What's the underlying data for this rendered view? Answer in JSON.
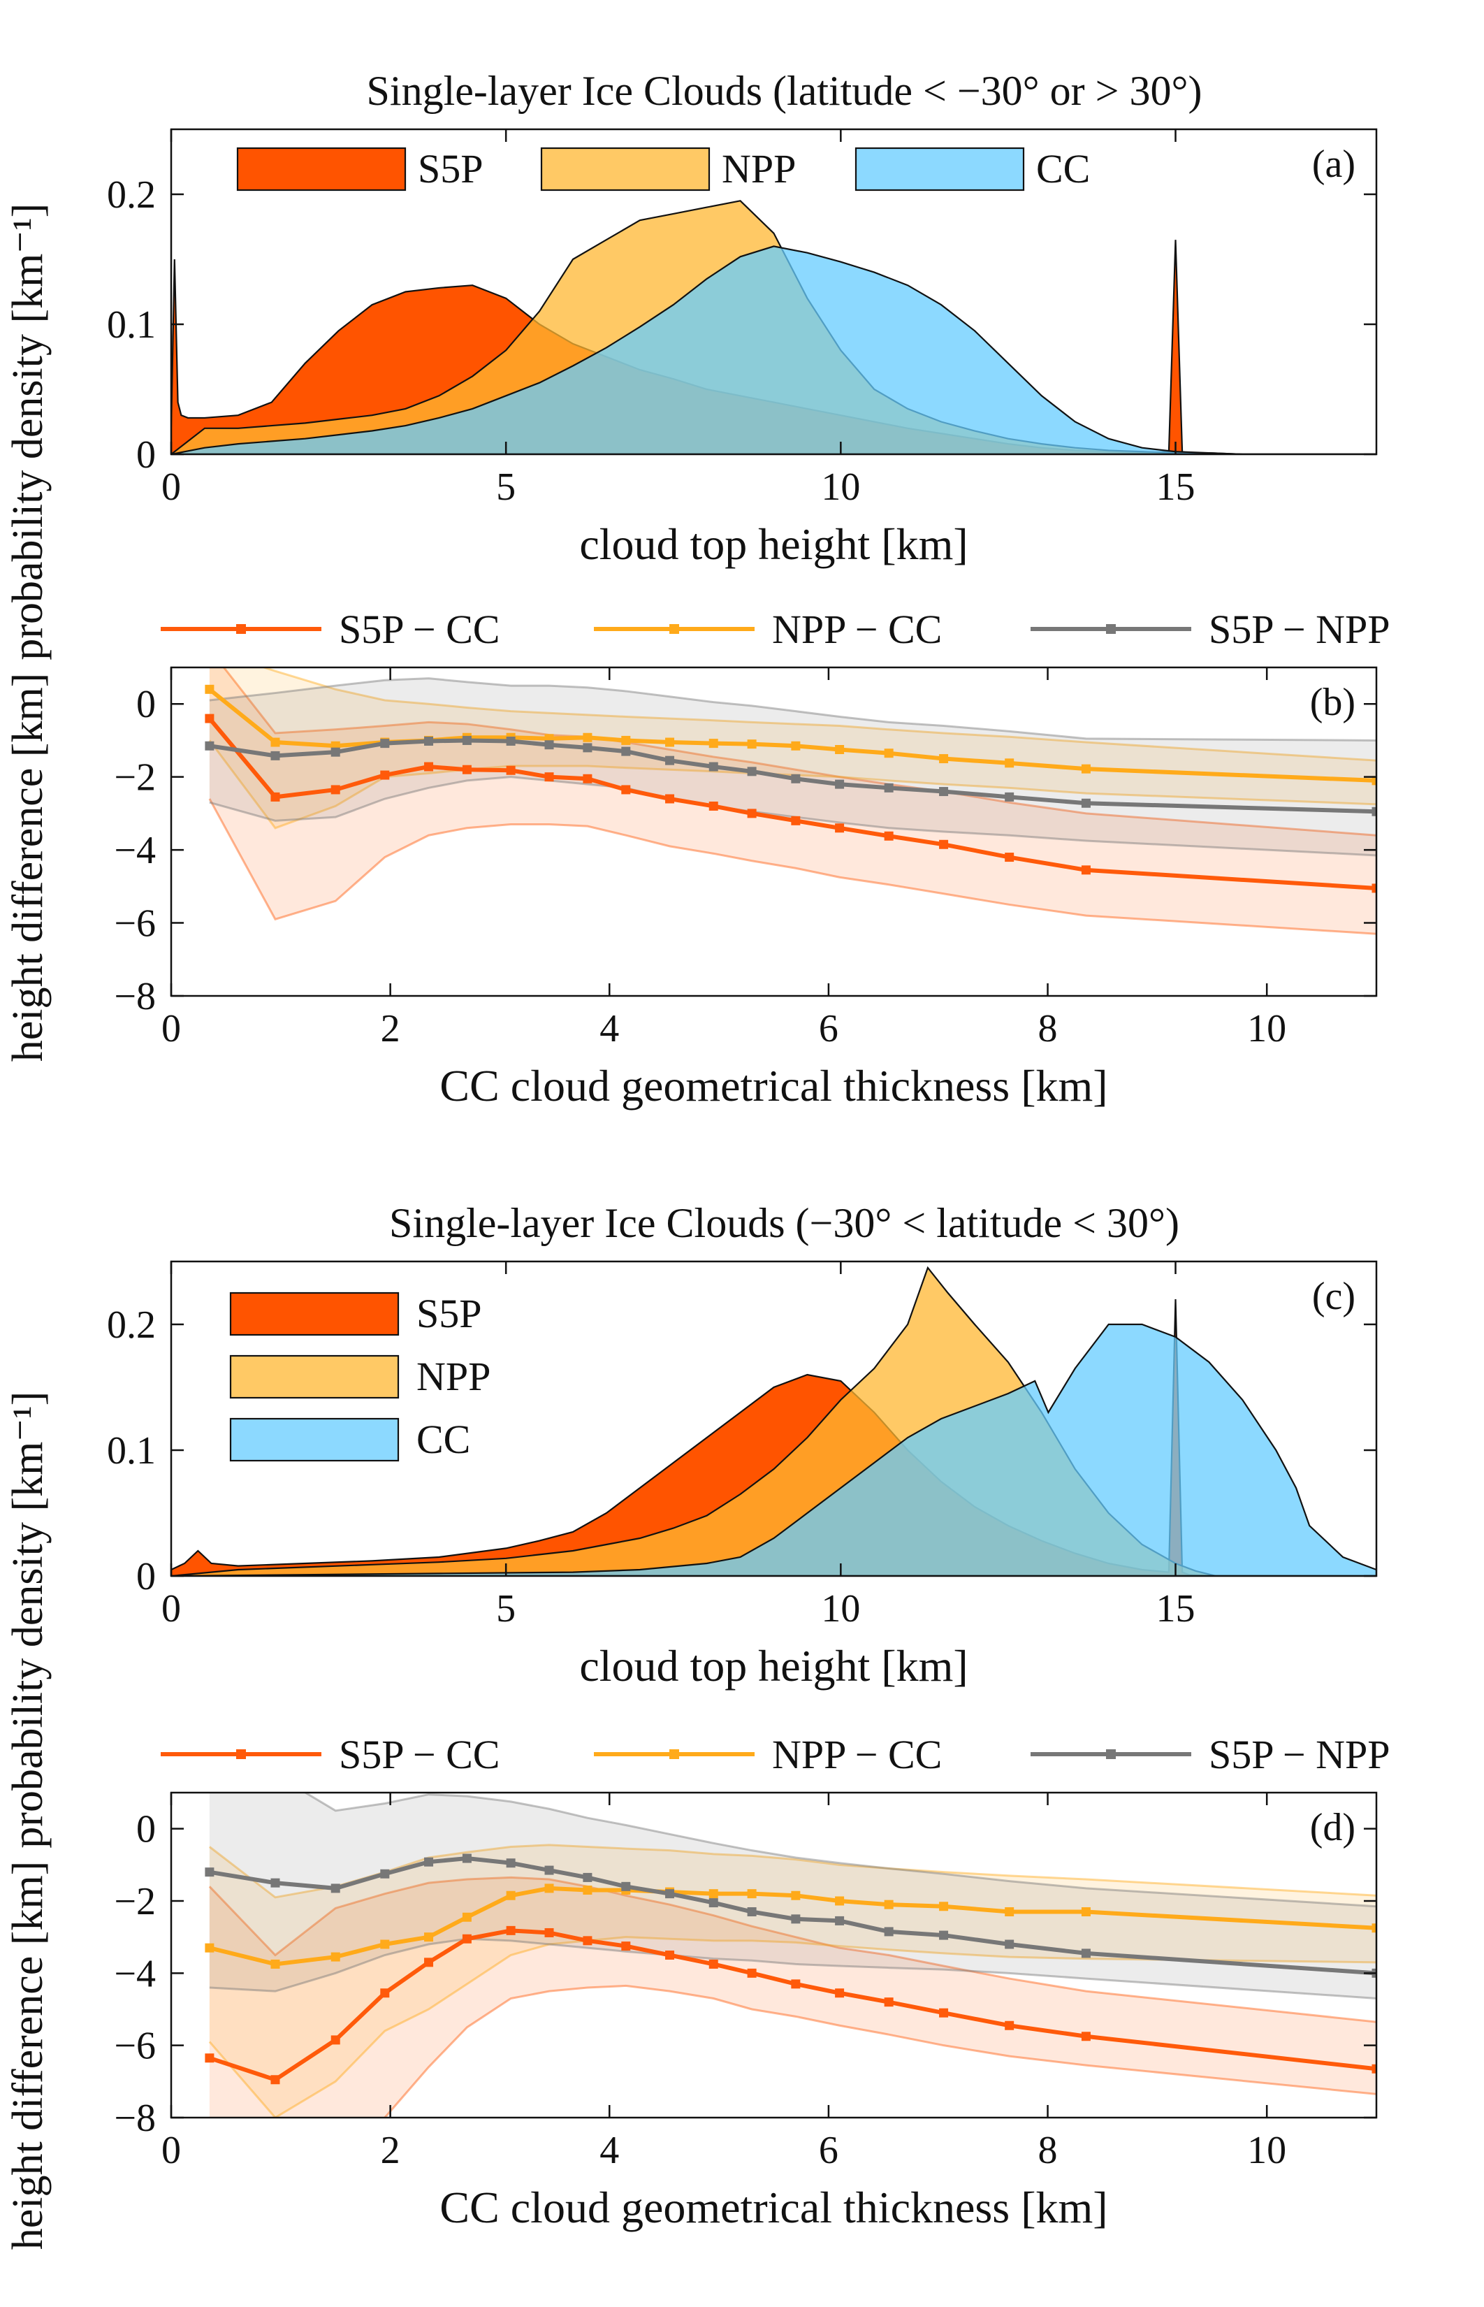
{
  "chart_data": [
    {
      "type": "area",
      "panel_label": "(a)",
      "title": "Single-layer Ice Clouds (latitude < −30° or > 30°)",
      "xlabel": "cloud top height [km]",
      "ylabel": "probability density [km⁻¹]",
      "ylabel_text": "probability density",
      "ylabel_unit": "[km⁻¹]",
      "xlim": [
        0,
        18
      ],
      "ylim": [
        0,
        0.25
      ],
      "xticks": [
        0,
        5,
        10,
        15
      ],
      "yticks": [
        0,
        0.1,
        0.2
      ],
      "xtick_labels": [
        "0",
        "5",
        "10",
        "15"
      ],
      "ytick_labels": [
        "0",
        "0.1",
        "0.2"
      ],
      "legend_position": "top",
      "series": [
        {
          "name": "S5P",
          "color": "#ff5400",
          "x": [
            0,
            0.05,
            0.1,
            0.15,
            0.25,
            0.5,
            1,
            1.5,
            2,
            2.5,
            3,
            3.5,
            4,
            4.5,
            5,
            5.5,
            6,
            6.5,
            7,
            7.5,
            8,
            8.5,
            9,
            9.5,
            10,
            10.5,
            11,
            11.5,
            12,
            12.5,
            13,
            13.5,
            14,
            14.5,
            14.9,
            15.0,
            15.1,
            15.2,
            15.5,
            16,
            17,
            18
          ],
          "values": [
            0.02,
            0.15,
            0.04,
            0.03,
            0.028,
            0.028,
            0.03,
            0.04,
            0.07,
            0.095,
            0.115,
            0.125,
            0.128,
            0.13,
            0.12,
            0.1,
            0.085,
            0.075,
            0.065,
            0.058,
            0.05,
            0.045,
            0.04,
            0.035,
            0.03,
            0.025,
            0.02,
            0.016,
            0.012,
            0.008,
            0.005,
            0.003,
            0.002,
            0.001,
            0.002,
            0.165,
            0.002,
            0.001,
            0.001,
            0.0,
            0.0,
            0.0
          ]
        },
        {
          "name": "NPP",
          "color": "#ffb732",
          "x": [
            0,
            0.5,
            1,
            1.5,
            2,
            2.5,
            3,
            3.5,
            4,
            4.5,
            5,
            5.5,
            6,
            6.5,
            7,
            7.5,
            8,
            8.5,
            9,
            9.5,
            10,
            10.5,
            11,
            11.5,
            12,
            12.5,
            13,
            13.5,
            14,
            14.5,
            15,
            16,
            17,
            18
          ],
          "values": [
            0.0,
            0.02,
            0.02,
            0.022,
            0.024,
            0.027,
            0.03,
            0.035,
            0.045,
            0.06,
            0.08,
            0.11,
            0.15,
            0.165,
            0.18,
            0.185,
            0.19,
            0.195,
            0.17,
            0.12,
            0.08,
            0.05,
            0.035,
            0.025,
            0.018,
            0.012,
            0.008,
            0.005,
            0.003,
            0.002,
            0.001,
            0.0,
            0.0,
            0.0
          ]
        },
        {
          "name": "CC",
          "color": "#66ccff",
          "x": [
            0,
            0.5,
            1,
            1.5,
            2,
            2.5,
            3,
            3.5,
            4,
            4.5,
            5,
            5.5,
            6,
            6.5,
            7,
            7.5,
            8,
            8.5,
            9,
            9.5,
            10,
            10.5,
            11,
            11.5,
            12,
            12.5,
            13,
            13.5,
            14,
            14.5,
            15,
            16,
            17,
            18
          ],
          "values": [
            0.0,
            0.005,
            0.008,
            0.01,
            0.012,
            0.015,
            0.018,
            0.022,
            0.028,
            0.035,
            0.045,
            0.055,
            0.068,
            0.082,
            0.098,
            0.115,
            0.135,
            0.152,
            0.16,
            0.155,
            0.148,
            0.14,
            0.13,
            0.115,
            0.095,
            0.07,
            0.045,
            0.025,
            0.012,
            0.005,
            0.002,
            0.0,
            0.0,
            0.0
          ]
        }
      ]
    },
    {
      "type": "line",
      "panel_label": "(b)",
      "xlabel": "CC cloud geometrical thickness [km]",
      "ylabel": "height difference [km]",
      "ylabel_text": "height difference",
      "ylabel_unit": "[km]",
      "xlim": [
        0,
        11
      ],
      "ylim": [
        -8,
        1
      ],
      "xticks": [
        0,
        2,
        4,
        6,
        8,
        10
      ],
      "yticks": [
        0,
        -2,
        -4,
        -6,
        -8
      ],
      "xtick_labels": [
        "0",
        "2",
        "4",
        "6",
        "8",
        "10"
      ],
      "ytick_labels": [
        "0",
        "−2",
        "−4",
        "−6",
        "−8"
      ],
      "legend_position": "top-outside",
      "x": [
        0.35,
        0.95,
        1.5,
        1.95,
        2.35,
        2.7,
        3.1,
        3.45,
        3.8,
        4.15,
        4.55,
        4.95,
        5.3,
        5.7,
        6.1,
        6.55,
        7.05,
        7.65,
        8.35,
        11.0
      ],
      "series": [
        {
          "name": "S5P − CC",
          "color": "#ff5a0a",
          "values": [
            -0.4,
            -2.55,
            -2.35,
            -1.95,
            -1.72,
            -1.8,
            -1.82,
            -2.0,
            -2.05,
            -2.35,
            -2.6,
            -2.8,
            -3.0,
            -3.2,
            -3.4,
            -3.62,
            -3.85,
            -4.2,
            -4.55,
            -5.05
          ],
          "lower": [
            -2.6,
            -5.9,
            -5.4,
            -4.2,
            -3.6,
            -3.4,
            -3.3,
            -3.3,
            -3.35,
            -3.6,
            -3.9,
            -4.1,
            -4.3,
            -4.5,
            -4.75,
            -4.95,
            -5.2,
            -5.5,
            -5.8,
            -6.3
          ],
          "upper": [
            1.5,
            -0.8,
            -0.7,
            -0.6,
            -0.5,
            -0.55,
            -0.7,
            -0.85,
            -0.9,
            -1.05,
            -1.25,
            -1.45,
            -1.6,
            -1.8,
            -2.0,
            -2.2,
            -2.4,
            -2.7,
            -3.0,
            -3.6
          ]
        },
        {
          "name": "NPP − CC",
          "color": "#ffaa1a",
          "values": [
            0.4,
            -1.05,
            -1.15,
            -1.05,
            -1.0,
            -0.92,
            -0.92,
            -0.95,
            -0.92,
            -1.0,
            -1.05,
            -1.08,
            -1.1,
            -1.15,
            -1.25,
            -1.35,
            -1.5,
            -1.62,
            -1.78,
            -2.1
          ],
          "lower": [
            -1.0,
            -3.4,
            -2.8,
            -2.0,
            -1.9,
            -1.8,
            -1.7,
            -1.7,
            -1.7,
            -1.75,
            -1.8,
            -1.85,
            -1.9,
            -1.95,
            -2.0,
            -2.1,
            -2.2,
            -2.3,
            -2.45,
            -2.75
          ],
          "upper": [
            1.5,
            0.9,
            0.4,
            0.1,
            0.0,
            -0.1,
            -0.2,
            -0.25,
            -0.3,
            -0.35,
            -0.4,
            -0.45,
            -0.5,
            -0.55,
            -0.6,
            -0.7,
            -0.8,
            -0.9,
            -1.05,
            -1.55
          ]
        },
        {
          "name": "S5P − NPP",
          "color": "#777777",
          "values": [
            -1.15,
            -1.42,
            -1.32,
            -1.08,
            -1.02,
            -1.0,
            -1.02,
            -1.12,
            -1.2,
            -1.3,
            -1.55,
            -1.72,
            -1.85,
            -2.05,
            -2.2,
            -2.3,
            -2.4,
            -2.55,
            -2.72,
            -2.95
          ],
          "lower": [
            -2.7,
            -3.2,
            -3.1,
            -2.6,
            -2.3,
            -2.1,
            -2.0,
            -2.1,
            -2.2,
            -2.3,
            -2.6,
            -2.8,
            -2.95,
            -3.1,
            -3.25,
            -3.4,
            -3.5,
            -3.6,
            -3.75,
            -4.15
          ],
          "upper": [
            0.1,
            0.3,
            0.5,
            0.65,
            0.7,
            0.6,
            0.5,
            0.5,
            0.45,
            0.35,
            0.2,
            0.05,
            -0.05,
            -0.2,
            -0.35,
            -0.5,
            -0.6,
            -0.75,
            -0.95,
            -1.0
          ]
        }
      ]
    },
    {
      "type": "area",
      "panel_label": "(c)",
      "title": "Single-layer Ice Clouds (−30° < latitude < 30°)",
      "xlabel": "cloud top height [km]",
      "ylabel": "probability density [km⁻¹]",
      "ylabel_text": "probability density",
      "ylabel_unit": "[km⁻¹]",
      "xlim": [
        0,
        18
      ],
      "ylim": [
        0,
        0.25
      ],
      "xticks": [
        0,
        5,
        10,
        15
      ],
      "yticks": [
        0,
        0.1,
        0.2
      ],
      "xtick_labels": [
        "0",
        "5",
        "10",
        "15"
      ],
      "ytick_labels": [
        "0",
        "0.1",
        "0.2"
      ],
      "legend_position": "top-left",
      "series": [
        {
          "name": "S5P",
          "color": "#ff5400",
          "x": [
            0,
            0.2,
            0.4,
            0.6,
            1,
            2,
            3,
            4,
            5,
            5.5,
            6,
            6.5,
            7,
            7.5,
            8,
            8.5,
            9,
            9.5,
            10,
            10.5,
            11,
            11.5,
            12,
            12.5,
            13,
            13.5,
            14,
            14.5,
            14.9,
            15.0,
            15.1,
            15.2,
            15.5,
            16,
            17,
            18
          ],
          "values": [
            0.005,
            0.01,
            0.02,
            0.01,
            0.008,
            0.01,
            0.012,
            0.015,
            0.022,
            0.028,
            0.035,
            0.05,
            0.07,
            0.09,
            0.11,
            0.13,
            0.15,
            0.16,
            0.155,
            0.13,
            0.1,
            0.075,
            0.055,
            0.04,
            0.028,
            0.018,
            0.01,
            0.005,
            0.003,
            0.22,
            0.003,
            0.001,
            0.0,
            0.0,
            0.0,
            0.0
          ]
        },
        {
          "name": "NPP",
          "color": "#ffb732",
          "x": [
            0,
            1,
            2,
            3,
            4,
            5,
            5.5,
            6,
            6.5,
            7,
            7.5,
            8,
            8.5,
            9,
            9.5,
            10,
            10.5,
            11,
            11.3,
            11.6,
            12,
            12.5,
            13,
            13.5,
            14,
            14.5,
            15,
            15.3,
            15.6,
            16,
            17,
            18
          ],
          "values": [
            0.0,
            0.005,
            0.007,
            0.009,
            0.011,
            0.014,
            0.017,
            0.02,
            0.025,
            0.03,
            0.038,
            0.048,
            0.065,
            0.085,
            0.11,
            0.14,
            0.165,
            0.2,
            0.245,
            0.225,
            0.2,
            0.17,
            0.13,
            0.085,
            0.05,
            0.025,
            0.01,
            0.004,
            0.0,
            0.0,
            0.0,
            0.0
          ]
        },
        {
          "name": "CC",
          "color": "#66ccff",
          "x": [
            0,
            2,
            4,
            6,
            7,
            8,
            8.5,
            9,
            9.5,
            10,
            10.5,
            11,
            11.5,
            12,
            12.5,
            12.9,
            13.1,
            13.5,
            14,
            14.5,
            15,
            15.5,
            16,
            16.5,
            16.8,
            17,
            17.5,
            18
          ],
          "values": [
            0.0,
            0.001,
            0.002,
            0.003,
            0.005,
            0.01,
            0.015,
            0.03,
            0.05,
            0.07,
            0.09,
            0.11,
            0.125,
            0.135,
            0.145,
            0.155,
            0.13,
            0.165,
            0.2,
            0.2,
            0.19,
            0.17,
            0.14,
            0.1,
            0.07,
            0.04,
            0.015,
            0.005
          ]
        }
      ]
    },
    {
      "type": "line",
      "panel_label": "(d)",
      "xlabel": "CC cloud geometrical thickness [km]",
      "ylabel": "height difference [km]",
      "ylabel_text": "height difference",
      "ylabel_unit": "[km]",
      "xlim": [
        0,
        11
      ],
      "ylim": [
        -8,
        1
      ],
      "xticks": [
        0,
        2,
        4,
        6,
        8,
        10
      ],
      "yticks": [
        0,
        -2,
        -4,
        -6,
        -8
      ],
      "xtick_labels": [
        "0",
        "2",
        "4",
        "6",
        "8",
        "10"
      ],
      "ytick_labels": [
        "0",
        "−2",
        "−4",
        "−6",
        "−8"
      ],
      "legend_position": "top-outside",
      "x": [
        0.35,
        0.95,
        1.5,
        1.95,
        2.35,
        2.7,
        3.1,
        3.45,
        3.8,
        4.15,
        4.55,
        4.95,
        5.3,
        5.7,
        6.1,
        6.55,
        7.05,
        7.65,
        8.35,
        11.0
      ],
      "series": [
        {
          "name": "S5P − CC",
          "color": "#ff5a0a",
          "values": [
            -6.35,
            -6.95,
            -5.85,
            -4.55,
            -3.7,
            -3.05,
            -2.82,
            -2.88,
            -3.1,
            -3.25,
            -3.5,
            -3.75,
            -4.0,
            -4.3,
            -4.55,
            -4.8,
            -5.1,
            -5.45,
            -5.75,
            -6.65
          ],
          "lower": [
            -9,
            -9,
            -9,
            -8.0,
            -6.6,
            -5.5,
            -4.7,
            -4.5,
            -4.4,
            -4.35,
            -4.5,
            -4.7,
            -5.0,
            -5.2,
            -5.45,
            -5.7,
            -6.0,
            -6.3,
            -6.55,
            -7.35
          ],
          "upper": [
            -1.6,
            -3.5,
            -2.2,
            -1.8,
            -1.5,
            -1.4,
            -1.35,
            -1.4,
            -1.6,
            -1.85,
            -2.1,
            -2.4,
            -2.7,
            -3.0,
            -3.3,
            -3.5,
            -3.8,
            -4.15,
            -4.5,
            -5.35
          ]
        },
        {
          "name": "NPP − CC",
          "color": "#ffaa1a",
          "values": [
            -3.3,
            -3.75,
            -3.55,
            -3.2,
            -3.0,
            -2.45,
            -1.85,
            -1.65,
            -1.7,
            -1.7,
            -1.75,
            -1.8,
            -1.8,
            -1.85,
            -2.0,
            -2.1,
            -2.15,
            -2.3,
            -2.3,
            -2.75
          ],
          "lower": [
            -5.9,
            -8.0,
            -7.0,
            -5.6,
            -5.0,
            -4.3,
            -3.5,
            -3.2,
            -3.1,
            -3.0,
            -3.05,
            -3.1,
            -3.1,
            -3.15,
            -3.25,
            -3.35,
            -3.45,
            -3.55,
            -3.6,
            -3.7
          ],
          "upper": [
            -0.5,
            -1.9,
            -1.6,
            -1.2,
            -0.8,
            -0.65,
            -0.5,
            -0.45,
            -0.5,
            -0.55,
            -0.6,
            -0.7,
            -0.75,
            -0.85,
            -1.0,
            -1.1,
            -1.2,
            -1.3,
            -1.4,
            -1.85
          ]
        },
        {
          "name": "S5P − NPP",
          "color": "#777777",
          "values": [
            -1.2,
            -1.5,
            -1.65,
            -1.25,
            -0.92,
            -0.82,
            -0.95,
            -1.15,
            -1.35,
            -1.6,
            -1.8,
            -2.05,
            -2.3,
            -2.5,
            -2.55,
            -2.85,
            -2.95,
            -3.2,
            -3.45,
            -4.0
          ],
          "lower": [
            -4.4,
            -4.5,
            -4.0,
            -3.5,
            -3.2,
            -3.05,
            -3.1,
            -3.2,
            -3.3,
            -3.4,
            -3.5,
            -3.6,
            -3.65,
            -3.75,
            -3.8,
            -3.85,
            -3.9,
            -4.0,
            -4.15,
            -4.7
          ],
          "upper": [
            1.5,
            1.5,
            0.5,
            0.7,
            0.95,
            0.9,
            0.75,
            0.55,
            0.3,
            0.1,
            -0.15,
            -0.4,
            -0.6,
            -0.8,
            -0.95,
            -1.1,
            -1.25,
            -1.45,
            -1.65,
            -2.15
          ]
        }
      ]
    }
  ]
}
